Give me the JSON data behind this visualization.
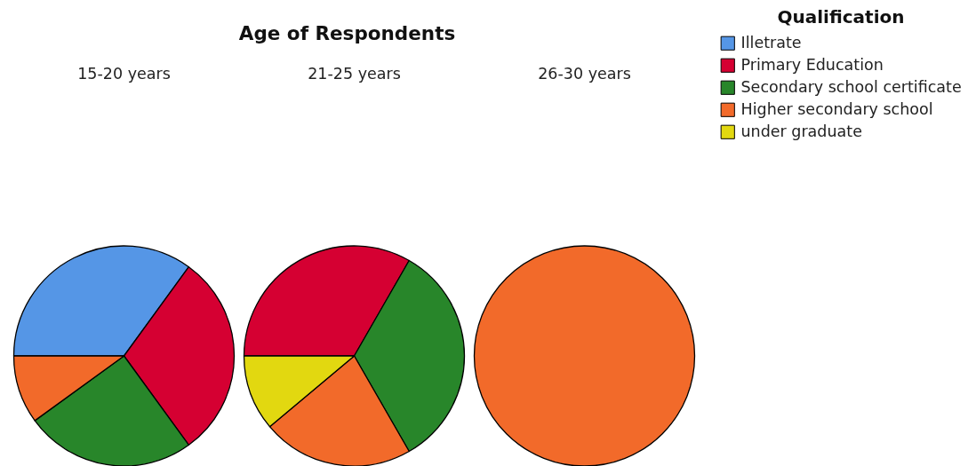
{
  "chart_data": {
    "type": "pie",
    "title": "Age of Respondents",
    "legend_title": "Qualification",
    "legend": "top right",
    "categories": [
      "Illetrate",
      "Primary Education",
      "Secondary school certificate",
      "Higher secondary school",
      "under graduate"
    ],
    "colors": [
      "#5596e6",
      "#d50032",
      "#28862a",
      "#f26a2a",
      "#e2d810"
    ],
    "series": [
      {
        "name": "15-20 years",
        "values": [
          35,
          30,
          25,
          10,
          null
        ]
      },
      {
        "name": "21-25 years",
        "values": [
          null,
          33.3,
          33.4,
          22.2,
          11.1
        ]
      },
      {
        "name": "26-30 years",
        "values": [
          null,
          null,
          null,
          100,
          null
        ]
      }
    ]
  }
}
